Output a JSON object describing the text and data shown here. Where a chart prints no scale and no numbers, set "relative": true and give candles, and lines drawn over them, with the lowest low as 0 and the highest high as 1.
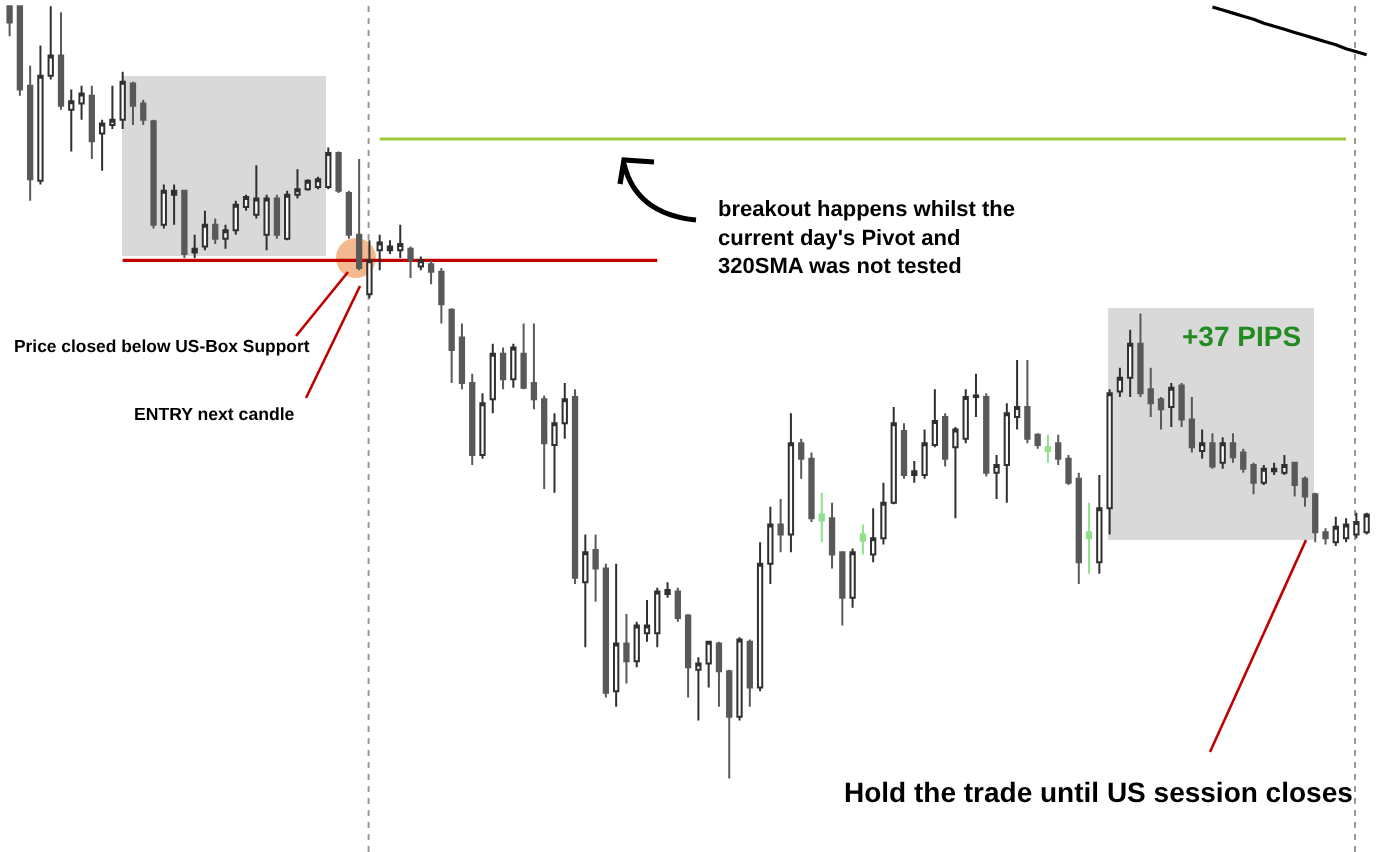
{
  "chart_data": {
    "type": "candlestick",
    "relative": true,
    "categories": [
      null,
      null,
      null,
      null,
      null,
      null,
      null,
      null,
      null,
      null,
      null,
      null,
      null,
      null,
      null,
      null,
      null,
      null,
      null,
      null,
      null,
      null,
      null,
      null,
      null,
      null,
      null,
      null,
      null,
      null,
      null,
      null,
      null,
      null,
      null,
      null,
      null,
      null,
      null,
      null,
      null,
      null,
      null,
      null,
      null,
      null,
      null,
      null,
      null,
      null,
      null,
      null,
      null,
      null,
      null,
      null,
      null,
      null,
      null,
      null,
      null,
      null,
      null,
      null,
      null,
      null,
      null,
      null,
      null,
      null,
      null,
      null,
      null,
      null,
      null,
      null,
      null,
      null,
      null,
      null,
      null,
      null,
      null,
      null,
      null,
      null,
      null,
      null,
      null,
      null,
      null,
      null,
      null,
      null,
      null,
      null,
      null,
      null,
      null,
      null,
      null,
      null,
      null,
      null,
      null,
      null,
      null,
      null,
      null,
      null,
      null,
      null,
      null,
      null,
      null,
      null,
      null,
      null,
      null,
      null,
      null,
      null,
      null,
      null,
      null,
      null,
      null,
      null,
      null,
      null,
      null,
      null,
      null
    ],
    "ohlc": [
      [
        1.0,
        1.0,
        0.961,
        0.979
      ],
      [
        1.0,
        1.0,
        0.884,
        0.892
      ],
      [
        0.897,
        0.923,
        0.748,
        0.776
      ],
      [
        0.774,
        0.949,
        0.769,
        0.91
      ],
      [
        0.91,
        1.0,
        0.905,
        0.936
      ],
      [
        0.936,
        0.992,
        0.866,
        0.871
      ],
      [
        0.866,
        0.892,
        0.812,
        0.877
      ],
      [
        0.874,
        0.897,
        0.853,
        0.887
      ],
      [
        0.884,
        0.897,
        0.802,
        0.825
      ],
      [
        0.835,
        0.853,
        0.787,
        0.848
      ],
      [
        0.846,
        0.897,
        0.841,
        0.853
      ],
      [
        0.853,
        0.915,
        0.841,
        0.902
      ],
      [
        0.9,
        0.902,
        0.846,
        0.871
      ],
      [
        0.874,
        0.879,
        0.846,
        0.853
      ],
      [
        0.851,
        0.853,
        0.712,
        0.717
      ],
      [
        0.717,
        0.769,
        0.712,
        0.761
      ],
      [
        0.756,
        0.769,
        0.717,
        0.761
      ],
      [
        0.761,
        0.761,
        0.674,
        0.679
      ],
      [
        0.681,
        0.704,
        0.674,
        0.686
      ],
      [
        0.689,
        0.735,
        0.684,
        0.717
      ],
      [
        0.717,
        0.725,
        0.692,
        0.699
      ],
      [
        0.699,
        0.717,
        0.686,
        0.71
      ],
      [
        0.71,
        0.748,
        0.704,
        0.743
      ],
      [
        0.74,
        0.756,
        0.735,
        0.753
      ],
      [
        0.73,
        0.794,
        0.725,
        0.751
      ],
      [
        0.704,
        0.756,
        0.684,
        0.751
      ],
      [
        0.751,
        0.756,
        0.699,
        0.704
      ],
      [
        0.699,
        0.761,
        0.697,
        0.756
      ],
      [
        0.756,
        0.789,
        0.751,
        0.763
      ],
      [
        0.763,
        0.776,
        0.761,
        0.774
      ],
      [
        0.766,
        0.779,
        0.763,
        0.776
      ],
      [
        0.766,
        0.817,
        0.763,
        0.81
      ],
      [
        0.81,
        0.812,
        0.758,
        0.761
      ],
      [
        0.758,
        0.761,
        0.699,
        0.704
      ],
      [
        0.704,
        0.802,
        0.658,
        0.661
      ],
      [
        0.627,
        0.697,
        0.622,
        0.671
      ],
      [
        0.684,
        0.704,
        0.658,
        0.694
      ],
      [
        0.684,
        0.697,
        0.679,
        0.689
      ],
      [
        0.684,
        0.717,
        0.674,
        0.692
      ],
      [
        0.686,
        0.689,
        0.648,
        0.671
      ],
      [
        0.663,
        0.676,
        0.658,
        0.671
      ],
      [
        0.666,
        0.671,
        0.64,
        0.656
      ],
      [
        0.656,
        0.661,
        0.589,
        0.614
      ],
      [
        0.607,
        0.609,
        0.512,
        0.555
      ],
      [
        0.571,
        0.589,
        0.504,
        0.512
      ],
      [
        0.512,
        0.524,
        0.406,
        0.419
      ],
      [
        0.419,
        0.499,
        0.414,
        0.486
      ],
      [
        0.491,
        0.563,
        0.473,
        0.55
      ],
      [
        0.55,
        0.558,
        0.504,
        0.517
      ],
      [
        0.517,
        0.563,
        0.506,
        0.558
      ],
      [
        0.55,
        0.589,
        0.504,
        0.506
      ],
      [
        0.512,
        0.589,
        0.478,
        0.491
      ],
      [
        0.491,
        0.496,
        0.375,
        0.434
      ],
      [
        0.432,
        0.473,
        0.37,
        0.46
      ],
      [
        0.46,
        0.512,
        0.44,
        0.491
      ],
      [
        0.494,
        0.504,
        0.252,
        0.26
      ],
      [
        0.254,
        0.316,
        0.17,
        0.293
      ],
      [
        0.296,
        0.316,
        0.229,
        0.272
      ],
      [
        0.272,
        0.278,
        0.105,
        0.111
      ],
      [
        0.113,
        0.278,
        0.093,
        0.175
      ],
      [
        0.175,
        0.213,
        0.123,
        0.152
      ],
      [
        0.152,
        0.203,
        0.144,
        0.198
      ],
      [
        0.188,
        0.231,
        0.177,
        0.198
      ],
      [
        0.188,
        0.247,
        0.17,
        0.242
      ],
      [
        0.239,
        0.254,
        0.234,
        0.244
      ],
      [
        0.242,
        0.247,
        0.203,
        0.208
      ],
      [
        0.211,
        0.213,
        0.105,
        0.144
      ],
      [
        0.141,
        0.157,
        0.075,
        0.149
      ],
      [
        0.149,
        0.177,
        0.118,
        0.177
      ],
      [
        0.175,
        0.177,
        0.093,
        0.139
      ],
      [
        0.139,
        0.141,
        0.0,
        0.08
      ],
      [
        0.08,
        0.183,
        0.075,
        0.18
      ],
      [
        0.177,
        0.18,
        0.093,
        0.118
      ],
      [
        0.118,
        0.306,
        0.113,
        0.278
      ],
      [
        0.278,
        0.352,
        0.252,
        0.329
      ],
      [
        0.329,
        0.362,
        0.293,
        0.316
      ],
      [
        0.316,
        0.473,
        0.293,
        0.434
      ],
      [
        0.434,
        0.44,
        0.388,
        0.414
      ],
      [
        0.414,
        0.422,
        0.332,
        0.337
      ],
      [
        0.334,
        0.37,
        0.306,
        0.342
      ],
      [
        0.337,
        0.357,
        0.272,
        0.29
      ],
      [
        0.293,
        0.293,
        0.198,
        0.234
      ],
      [
        0.234,
        0.298,
        0.221,
        0.293
      ],
      [
        0.308,
        0.329,
        0.29,
        0.316
      ],
      [
        0.29,
        0.35,
        0.28,
        0.311
      ],
      [
        0.311,
        0.383,
        0.303,
        0.357
      ],
      [
        0.357,
        0.481,
        0.355,
        0.46
      ],
      [
        0.45,
        0.46,
        0.388,
        0.393
      ],
      [
        0.393,
        0.411,
        0.383,
        0.398
      ],
      [
        0.393,
        0.452,
        0.388,
        0.434
      ],
      [
        0.432,
        0.504,
        0.429,
        0.463
      ],
      [
        0.468,
        0.473,
        0.404,
        0.414
      ],
      [
        0.429,
        0.455,
        0.337,
        0.452
      ],
      [
        0.44,
        0.504,
        0.434,
        0.494
      ],
      [
        0.494,
        0.524,
        0.468,
        0.496
      ],
      [
        0.494,
        0.499,
        0.391,
        0.396
      ],
      [
        0.396,
        0.419,
        0.362,
        0.406
      ],
      [
        0.406,
        0.486,
        0.357,
        0.473
      ],
      [
        0.468,
        0.542,
        0.452,
        0.481
      ],
      [
        0.481,
        0.542,
        0.434,
        0.44
      ],
      [
        0.445,
        0.447,
        0.427,
        0.432
      ],
      [
        0.424,
        0.445,
        0.409,
        0.429
      ],
      [
        0.434,
        0.445,
        0.406,
        0.414
      ],
      [
        0.414,
        0.419,
        0.38,
        0.383
      ],
      [
        0.388,
        0.396,
        0.252,
        0.28
      ],
      [
        0.311,
        0.357,
        0.265,
        0.319
      ],
      [
        0.28,
        0.393,
        0.265,
        0.35
      ],
      [
        0.35,
        0.504,
        0.316,
        0.499
      ],
      [
        0.501,
        0.532,
        0.494,
        0.519
      ],
      [
        0.519,
        0.581,
        0.494,
        0.563
      ],
      [
        0.563,
        0.602,
        0.494,
        0.499
      ],
      [
        0.504,
        0.532,
        0.468,
        0.486
      ],
      [
        0.491,
        0.494,
        0.452,
        0.478
      ],
      [
        0.481,
        0.512,
        0.455,
        0.506
      ],
      [
        0.509,
        0.512,
        0.455,
        0.465
      ],
      [
        0.465,
        0.494,
        0.422,
        0.429
      ],
      [
        0.424,
        0.452,
        0.414,
        0.434
      ],
      [
        0.434,
        0.447,
        0.401,
        0.404
      ],
      [
        0.409,
        0.442,
        0.401,
        0.434
      ],
      [
        0.434,
        0.447,
        0.409,
        0.416
      ],
      [
        0.422,
        0.427,
        0.396,
        0.401
      ],
      [
        0.406,
        0.409,
        0.368,
        0.383
      ],
      [
        0.383,
        0.406,
        0.38,
        0.401
      ],
      [
        0.398,
        0.409,
        0.393,
        0.401
      ],
      [
        0.396,
        0.419,
        0.393,
        0.406
      ],
      [
        0.409,
        0.409,
        0.365,
        0.38
      ],
      [
        0.388,
        0.391,
        0.352,
        0.365
      ],
      [
        0.368,
        0.37,
        0.306,
        0.319
      ],
      [
        0.319,
        0.324,
        0.303,
        0.311
      ],
      [
        0.306,
        0.339,
        0.301,
        0.326
      ],
      [
        0.311,
        0.337,
        0.306,
        0.329
      ],
      [
        0.316,
        0.344,
        0.311,
        0.332
      ],
      [
        0.319,
        0.344,
        0.316,
        0.342
      ]
    ],
    "colors": [
      "#595959",
      "#595959",
      "#595959",
      "#ffffff",
      "#ffffff",
      "#595959",
      "#ffffff",
      "#ffffff",
      "#595959",
      "#ffffff",
      "#ffffff",
      "#ffffff",
      "#595959",
      "#595959",
      "#595959",
      "#ffffff",
      "#303030",
      "#595959",
      "#303030",
      "#ffffff",
      "#595959",
      "#ffffff",
      "#ffffff",
      "#ffffff",
      "#ffffff",
      "#ffffff",
      "#595959",
      "#ffffff",
      "#ffffff",
      "#ffffff",
      "#ffffff",
      "#ffffff",
      "#595959",
      "#595959",
      "#595959",
      "#ffffff",
      "#ffffff",
      "#303030",
      "#ffffff",
      "#595959",
      "#ffffff",
      "#595959",
      "#595959",
      "#595959",
      "#595959",
      "#595959",
      "#ffffff",
      "#ffffff",
      "#595959",
      "#ffffff",
      "#595959",
      "#595959",
      "#595959",
      "#ffffff",
      "#ffffff",
      "#595959",
      "#ffffff",
      "#595959",
      "#595959",
      "#ffffff",
      "#595959",
      "#ffffff",
      "#ffffff",
      "#ffffff",
      "#303030",
      "#595959",
      "#595959",
      "#ffffff",
      "#ffffff",
      "#595959",
      "#595959",
      "#ffffff",
      "#595959",
      "#ffffff",
      "#ffffff",
      "#595959",
      "#ffffff",
      "#595959",
      "#595959",
      "#90e090",
      "#595959",
      "#595959",
      "#ffffff",
      "#90e090",
      "#ffffff",
      "#ffffff",
      "#ffffff",
      "#595959",
      "#303030",
      "#ffffff",
      "#ffffff",
      "#595959",
      "#ffffff",
      "#ffffff",
      "#303030",
      "#595959",
      "#ffffff",
      "#ffffff",
      "#ffffff",
      "#595959",
      "#595959",
      "#90e090",
      "#595959",
      "#595959",
      "#595959",
      "#90e090",
      "#ffffff",
      "#ffffff",
      "#ffffff",
      "#ffffff",
      "#595959",
      "#595959",
      "#595959",
      "#ffffff",
      "#595959",
      "#595959",
      "#ffffff",
      "#595959",
      "#ffffff",
      "#595959",
      "#595959",
      "#595959",
      "#ffffff",
      "#303030",
      "#ffffff",
      "#595959",
      "#595959",
      "#595959",
      "#595959",
      "#ffffff",
      "#ffffff",
      "#ffffff",
      "#ffffff"
    ],
    "series": [
      {
        "type": "line",
        "color": "#c00000",
        "values": [
          null,
          null,
          null,
          null,
          null,
          null,
          null,
          null,
          null,
          null,
          null,
          0.671,
          0.671,
          0.671,
          0.671,
          0.671,
          0.671,
          0.671,
          0.671,
          0.671,
          0.671,
          0.671,
          0.671,
          0.671,
          0.671,
          0.671,
          0.671,
          0.671,
          0.671,
          0.671,
          0.671,
          0.671,
          0.671,
          0.671,
          0.671,
          0.671,
          0.671,
          0.671,
          0.671,
          0.671,
          0.671,
          0.671,
          0.671,
          0.671,
          0.671,
          0.671,
          0.671,
          0.671,
          0.671,
          0.671,
          0.671,
          0.671,
          0.671,
          0.671,
          0.671,
          0.671,
          0.671,
          0.671,
          0.671,
          0.671,
          0.671,
          0.671,
          0.671,
          0.671,
          null,
          null,
          null,
          null,
          null,
          null,
          null,
          null,
          null,
          null,
          null,
          null,
          null,
          null,
          null,
          null,
          null,
          null,
          null,
          null,
          null,
          null,
          null,
          null,
          null,
          null,
          null,
          null,
          null,
          null,
          null,
          null,
          null,
          null,
          null,
          null,
          null,
          null,
          null,
          null,
          null,
          null,
          null,
          null,
          null,
          null,
          null,
          null,
          null,
          null,
          null,
          null,
          null,
          null,
          null,
          null,
          null,
          null,
          null,
          null,
          null,
          null,
          null,
          null,
          null,
          null,
          null,
          null,
          null
        ]
      },
      {
        "type": "line",
        "color": "#9bc83c",
        "values": [
          null,
          null,
          null,
          null,
          null,
          null,
          null,
          null,
          null,
          null,
          null,
          null,
          null,
          null,
          null,
          null,
          null,
          null,
          null,
          null,
          null,
          null,
          null,
          null,
          null,
          null,
          null,
          null,
          null,
          null,
          null,
          null,
          null,
          null,
          null,
          null,
          0.828,
          0.828,
          0.828,
          0.828,
          0.828,
          0.828,
          0.828,
          0.828,
          0.828,
          0.828,
          0.828,
          0.828,
          0.828,
          0.828,
          0.828,
          0.828,
          0.828,
          0.828,
          0.828,
          0.828,
          0.828,
          0.828,
          0.828,
          0.828,
          0.828,
          0.828,
          0.828,
          0.828,
          0.828,
          0.828,
          0.828,
          0.828,
          0.828,
          0.828,
          0.828,
          0.828,
          0.828,
          0.828,
          0.828,
          0.828,
          0.828,
          0.828,
          0.828,
          0.828,
          0.828,
          0.828,
          0.828,
          0.828,
          0.828,
          0.828,
          0.828,
          0.828,
          0.828,
          0.828,
          0.828,
          0.828,
          0.828,
          0.828,
          0.828,
          0.828,
          0.828,
          0.828,
          0.828,
          0.828,
          0.828,
          0.828,
          0.828,
          0.828,
          0.828,
          0.828,
          0.828,
          0.828,
          0.828,
          0.828,
          0.828,
          0.828,
          0.828,
          0.828,
          0.828,
          0.828,
          0.828,
          0.828,
          0.828,
          0.828,
          0.828,
          0.828,
          0.828,
          0.828,
          0.828,
          0.828,
          0.828,
          0.828,
          0.828,
          0.828,
          0.828,
          null,
          null
        ]
      },
      {
        "type": "line",
        "color": "#000000",
        "values": [
          null,
          null,
          null,
          null,
          null,
          null,
          null,
          null,
          null,
          null,
          null,
          null,
          null,
          null,
          null,
          null,
          null,
          null,
          null,
          null,
          null,
          null,
          null,
          null,
          null,
          null,
          null,
          null,
          null,
          null,
          null,
          null,
          null,
          null,
          null,
          null,
          null,
          null,
          null,
          null,
          null,
          null,
          null,
          null,
          null,
          null,
          null,
          null,
          null,
          null,
          null,
          null,
          null,
          null,
          null,
          null,
          null,
          null,
          null,
          null,
          null,
          null,
          null,
          null,
          null,
          null,
          null,
          null,
          null,
          null,
          null,
          null,
          null,
          null,
          null,
          null,
          null,
          null,
          null,
          null,
          null,
          null,
          null,
          null,
          null,
          null,
          null,
          null,
          null,
          null,
          null,
          null,
          null,
          null,
          null,
          null,
          null,
          null,
          null,
          null,
          null,
          null,
          null,
          null,
          null,
          null,
          null,
          null,
          null,
          null,
          null,
          null,
          null,
          null,
          null,
          null,
          null,
          0.999,
          0.995,
          0.991,
          0.987,
          0.983,
          0.978,
          0.974,
          0.97,
          0.966,
          0.962,
          0.958,
          0.954,
          0.95,
          0.945,
          0.941,
          0.937
        ]
      }
    ],
    "annotations": [
      "breakout happens whilst the\ncurrent day's Pivot and\n320SMA was not tested",
      "Price closed below US-Box Support",
      "ENTRY next candle",
      "+37 PIPS",
      "Hold the trade until US session closes"
    ]
  }
}
